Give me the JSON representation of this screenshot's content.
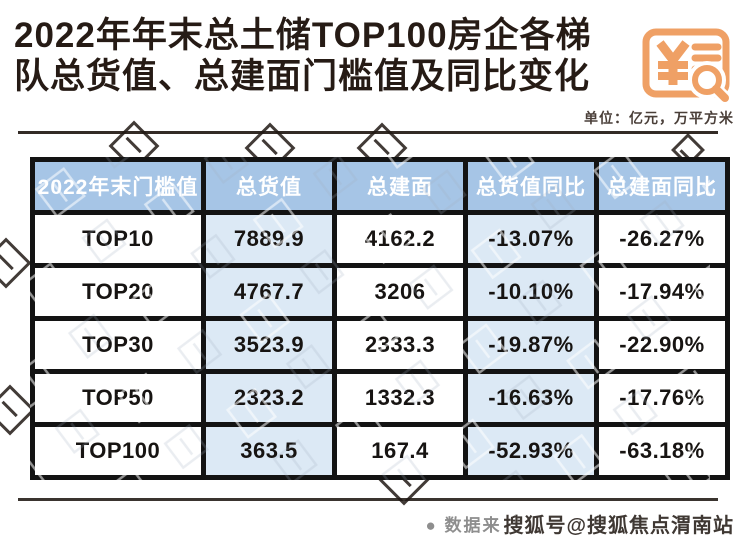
{
  "title": {
    "line1": "2022年年末总土储TOP100房企各梯",
    "line2": "队总货值、总建面门槛值及同比变化"
  },
  "unit_label": "单位：亿元，万平方米",
  "icon": {
    "name": "money-document-search-icon",
    "color": "#EFA065"
  },
  "chart_data": {
    "type": "table",
    "title": "2022年年末总土储TOP100房企各梯队总货值、总建面门槛值及同比变化",
    "unit": "亿元，万平方米",
    "columns": [
      "2022年末门槛值",
      "总货值",
      "总建面",
      "总货值同比",
      "总建面同比"
    ],
    "rows": [
      [
        "TOP10",
        "7889.9",
        "4162.2",
        "-13.07%",
        "-26.27%"
      ],
      [
        "TOP20",
        "4767.7",
        "3206",
        "-10.10%",
        "-17.94%"
      ],
      [
        "TOP30",
        "3523.9",
        "2333.3",
        "-19.87%",
        "-22.90%"
      ],
      [
        "TOP50",
        "2323.2",
        "1332.3",
        "-16.63%",
        "-17.76%"
      ],
      [
        "TOP100",
        "363.5",
        "167.4",
        "-52.93%",
        "-63.18%"
      ]
    ],
    "legend_position": "none",
    "grid": "heavy-black-borders"
  },
  "footer": {
    "bullet": "●",
    "source_prefix": "数据来",
    "watermark": "搜狐号@搜狐焦点渭南站"
  },
  "colors": {
    "header_bg": "#A6C5E6",
    "cell_alt_bg": "#DCE9F5",
    "cell_bg": "#FFFFFF",
    "border": "#131313",
    "title_color": "#261B15",
    "accent_orange": "#EFA065",
    "source_gray": "#8E8E8E"
  }
}
